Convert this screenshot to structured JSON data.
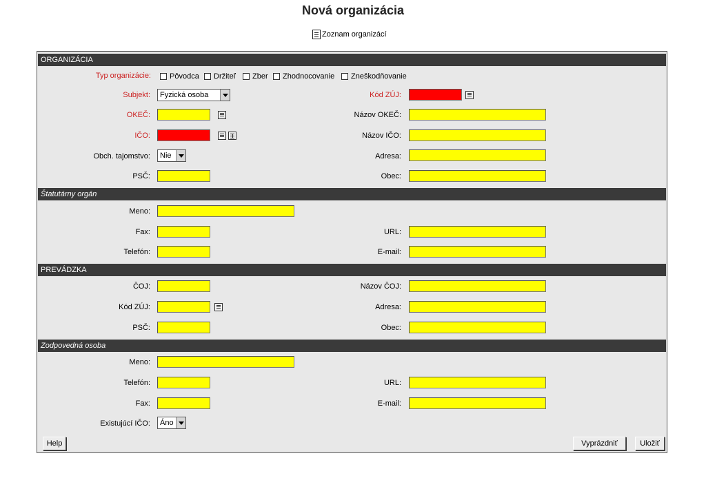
{
  "page": {
    "title": "Nová organizácia",
    "list_link": "Zoznam organizácí"
  },
  "sections": {
    "organizacia": "ORGANIZÁCIA",
    "statutarny": "Štatutárny orgán",
    "prevadzka": "PREVÁDZKA",
    "zodpovedna": "Zodpovedná osoba"
  },
  "org": {
    "typ_label": "Typ organizácie:",
    "checkboxes": [
      "Pôvodca",
      "Držiteľ",
      "Zber",
      "Zhodnocovanie",
      "Zneškodňovanie"
    ],
    "subjekt_label": "Subjekt:",
    "subjekt_value": "Fyzická osoba",
    "kod_zuj_label": "Kód ZÚJ:",
    "okec_label": "OKEČ:",
    "nazov_okec_label": "Názov OKEČ:",
    "ico_label": "IČO:",
    "nazov_ico_label": "Názov IČO:",
    "obch_label": "Obch. tajomstvo:",
    "obch_value": "Nie",
    "adresa_label": "Adresa:",
    "psc_label": "PSČ:",
    "obec_label": "Obec:"
  },
  "stat": {
    "meno_label": "Meno:",
    "fax_label": "Fax:",
    "url_label": "URL:",
    "telefon_label": "Telefón:",
    "email_label": "E-mail:"
  },
  "prev": {
    "coj_label": "ČOJ:",
    "nazov_coj_label": "Názov ČOJ:",
    "kod_zuj_label": "Kód ZÚJ:",
    "adresa_label": "Adresa:",
    "psc_label": "PSČ:",
    "obec_label": "Obec:"
  },
  "zodp": {
    "meno_label": "Meno:",
    "telefon_label": "Telefón:",
    "url_label": "URL:",
    "fax_label": "Fax:",
    "email_label": "E-mail:",
    "existujuci_label": "Existujúcí IČO:",
    "existujuci_value": "Áno"
  },
  "buttons": {
    "help": "Help",
    "vyprazdnit": "Vyprázdniť",
    "ulozit": "Uložiť"
  },
  "colors": {
    "required_field": "#ff0000",
    "field": "#ffff00",
    "required_label": "#cc2222",
    "section_bar": "#3a3a3a"
  }
}
